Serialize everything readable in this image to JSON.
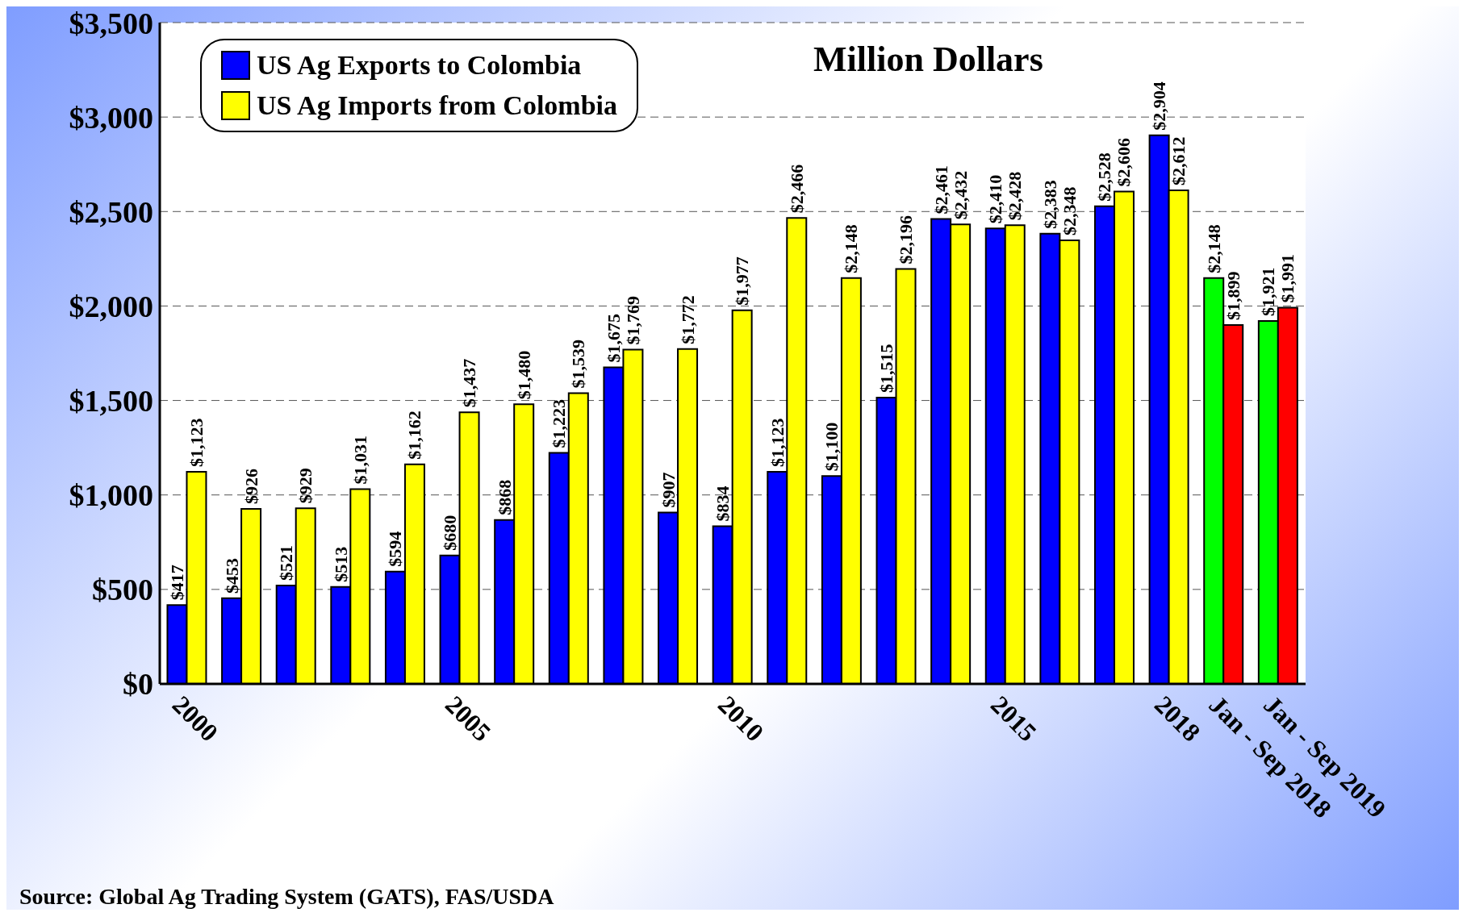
{
  "chart_data": {
    "type": "bar",
    "title": "Million Dollars",
    "categories": [
      "2000",
      null,
      null,
      null,
      null,
      "2005",
      null,
      null,
      null,
      null,
      "2010",
      null,
      null,
      null,
      null,
      "2015",
      null,
      null,
      "2018",
      "Jan - Sep 2018",
      "Jan - Sep 2019"
    ],
    "series": [
      {
        "name": "US Ag Exports to Colombia",
        "color": "#0000ff",
        "colors": [
          "#0000ff",
          "#0000ff",
          "#0000ff",
          "#0000ff",
          "#0000ff",
          "#0000ff",
          "#0000ff",
          "#0000ff",
          "#0000ff",
          "#0000ff",
          "#0000ff",
          "#0000ff",
          "#0000ff",
          "#0000ff",
          "#0000ff",
          "#0000ff",
          "#0000ff",
          "#0000ff",
          "#0000ff",
          "#00ff00",
          "#00ff00"
        ],
        "values": [
          417,
          453,
          521,
          513,
          594,
          680,
          868,
          1223,
          1675,
          907,
          834,
          1123,
          1100,
          1515,
          2461,
          2410,
          2383,
          2528,
          2904,
          2148,
          1921
        ],
        "value_labels": [
          "$417",
          "$453",
          "$521",
          "$513",
          "$594",
          "$680",
          "$868",
          "$1,223",
          "$1,675",
          "$907",
          "$834",
          "$1,123",
          "$1,100",
          "$1,515",
          "$2,461",
          "$2,410",
          "$2,383",
          "$2,528",
          "$2,904",
          "$2,148",
          "$1,921"
        ]
      },
      {
        "name": "US Ag Imports from Colombia",
        "color": "#ffff00",
        "colors": [
          "#ffff00",
          "#ffff00",
          "#ffff00",
          "#ffff00",
          "#ffff00",
          "#ffff00",
          "#ffff00",
          "#ffff00",
          "#ffff00",
          "#ffff00",
          "#ffff00",
          "#ffff00",
          "#ffff00",
          "#ffff00",
          "#ffff00",
          "#ffff00",
          "#ffff00",
          "#ffff00",
          "#ffff00",
          "#ff0000",
          "#ff0000"
        ],
        "values": [
          1123,
          926,
          929,
          1031,
          1162,
          1437,
          1480,
          1539,
          1769,
          1772,
          1977,
          2466,
          2148,
          2196,
          2432,
          2428,
          2348,
          2606,
          2612,
          1899,
          1991
        ],
        "value_labels": [
          "$1,123",
          "$926",
          "$929",
          "$1,031",
          "$1,162",
          "$1,437",
          "$1,480",
          "$1,539",
          "$1,769",
          "$1,772",
          "$1,977",
          "$2,466",
          "$2,148",
          "$2,196",
          "$2,432",
          "$2,428",
          "$2,348",
          "$2,606",
          "$2,612",
          "$1,899",
          "$1,991"
        ]
      }
    ],
    "ylim": [
      0,
      3500
    ],
    "yticks": [
      {
        "value": 0,
        "label": "$0"
      },
      {
        "value": 500,
        "label": "$500"
      },
      {
        "value": 1000,
        "label": "$1,000"
      },
      {
        "value": 1500,
        "label": "$1,500"
      },
      {
        "value": 2000,
        "label": "$2,000"
      },
      {
        "value": 2500,
        "label": "$2,500"
      },
      {
        "value": 3000,
        "label": "$3,000"
      },
      {
        "value": 3500,
        "label": "$3,500"
      }
    ],
    "grid": "y",
    "legend": "top left",
    "annotations": [
      "Source:  Global Ag Trading System (GATS), FAS/USDA"
    ]
  }
}
